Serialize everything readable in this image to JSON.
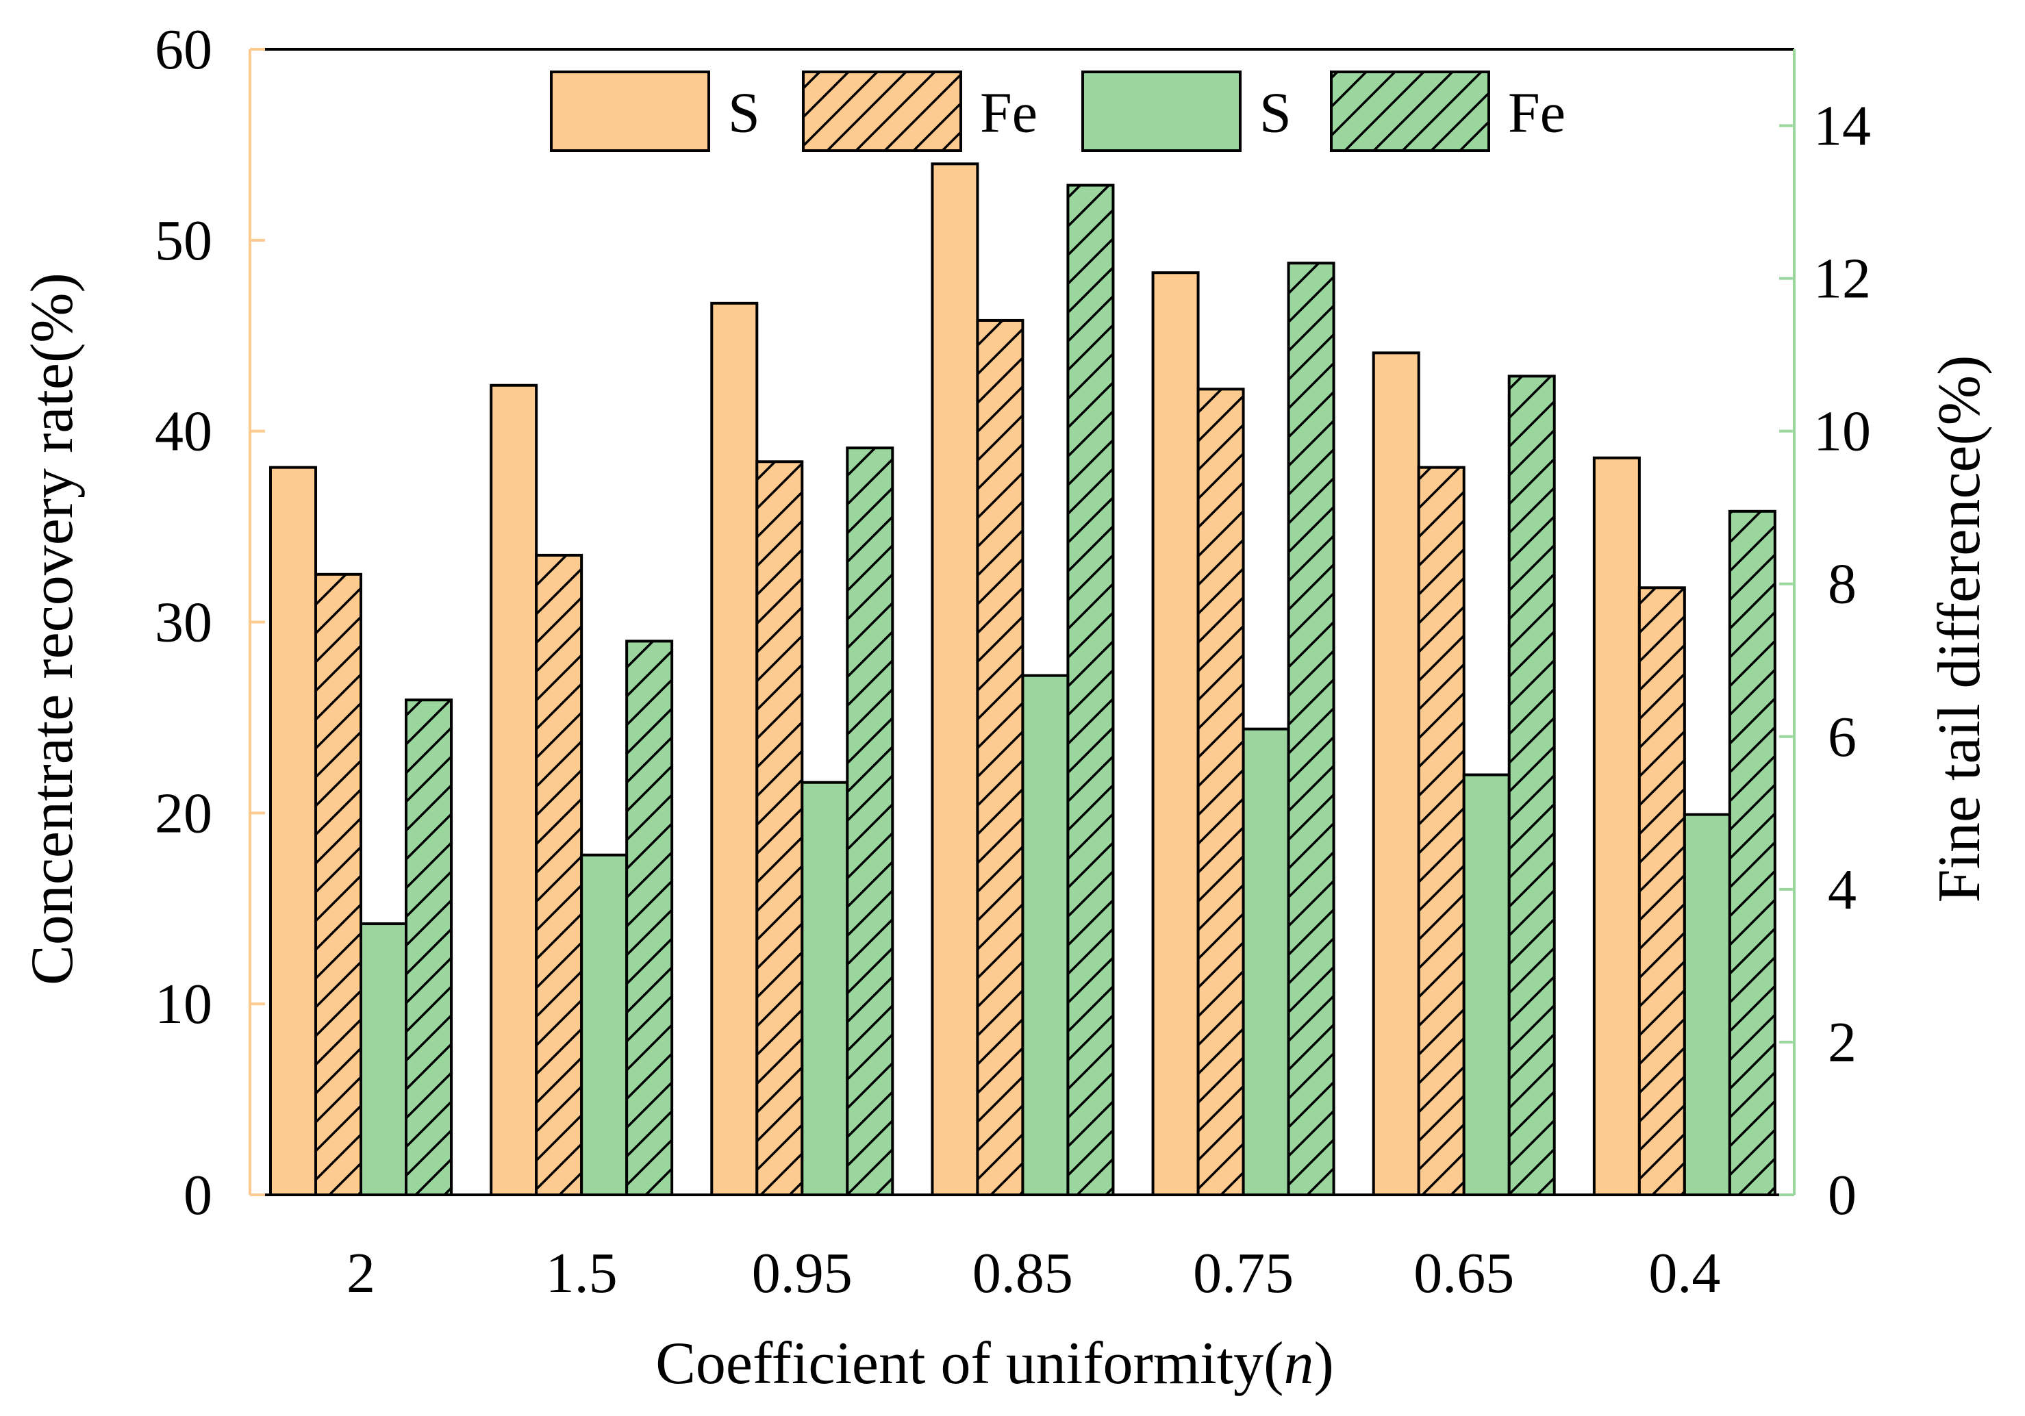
{
  "chart_data": {
    "type": "bar",
    "title": "",
    "categories": [
      "2",
      "1.5",
      "0.95",
      "0.85",
      "0.75",
      "0.65",
      "0.4"
    ],
    "xlabel": "Coefficient of uniformity(n)",
    "xlabel_parts": {
      "main": "Coefficient of uniformity(",
      "italic": "n",
      "close": ")"
    },
    "ylabel": "Concentrate recovery rate(%)",
    "y2label": "Fine tail difference(%)",
    "ylim": [
      0,
      60
    ],
    "y2lim": [
      0,
      15
    ],
    "yticks": [
      0,
      10,
      20,
      30,
      40,
      50,
      60
    ],
    "y2ticks": [
      0,
      2,
      4,
      6,
      8,
      10,
      12,
      14
    ],
    "grid": false,
    "legend_position": "top-center",
    "series": [
      {
        "name": "S",
        "axis": "left",
        "color": "#FDCB8F",
        "hatched": false,
        "values": [
          38.1,
          42.4,
          46.7,
          54,
          48.3,
          44.1,
          38.6
        ]
      },
      {
        "name": "Fe",
        "axis": "left",
        "color": "#FDCB8F",
        "hatched": true,
        "values": [
          32.5,
          33.5,
          38.4,
          45.8,
          42.2,
          38.1,
          31.8
        ]
      },
      {
        "name": "S",
        "axis": "right",
        "color": "#9AD69E",
        "hatched": false,
        "values": [
          3.55,
          4.45,
          5.4,
          6.8,
          6.1,
          5.5,
          4.98
        ]
      },
      {
        "name": "Fe",
        "axis": "right",
        "color": "#9AD69E",
        "hatched": true,
        "values": [
          6.48,
          7.25,
          9.78,
          13.22,
          12.2,
          10.72,
          8.95
        ]
      }
    ],
    "axis_colors": {
      "left": "#FDCB8F",
      "right": "#9AD69E",
      "frame": "#000000"
    }
  }
}
